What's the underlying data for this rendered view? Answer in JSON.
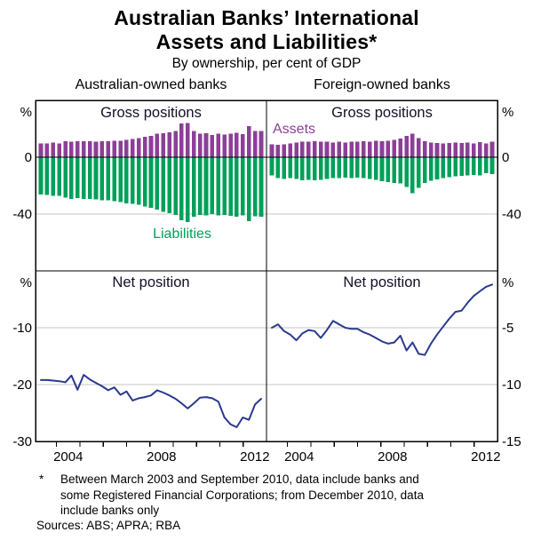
{
  "header": {
    "title_line1": "Australian Banks’ International",
    "title_line2": "Assets and Liabilities*",
    "subtitle": "By ownership, per cent of GDP",
    "col_left": "Australian-owned banks",
    "col_right": "Foreign-owned banks"
  },
  "labels": {
    "gross_left": "Gross positions",
    "gross_right": "Gross positions",
    "net_left": "Net position",
    "net_right": "Net position",
    "assets": "Assets",
    "liabilities": "Liabilities"
  },
  "colors": {
    "assets": "#8C3F97",
    "liabilities": "#00A05A",
    "net_line": "#2B3990",
    "grid": "#c4c4c4",
    "axis": "#000000"
  },
  "footnote": {
    "marker": "*",
    "text": "Between March 2003 and September 2010, data include banks and\nsome Registered Financial Corporations; from December 2010, data\ninclude banks only",
    "sources": "Sources: ABS; APRA; RBA"
  },
  "chart_data": [
    {
      "id": "tl",
      "type": "bar",
      "group": "Australian-owned banks",
      "title": "Gross positions",
      "x_quarters": {
        "start": "2003Q1",
        "end": "2012Q1",
        "step": "quarter"
      },
      "xlim": [
        2003.1,
        2013.0
      ],
      "ylim": [
        -80,
        40
      ],
      "ylabel": "%",
      "axis_side": "left",
      "yticks": [
        {
          "v": 0,
          "label": "0"
        },
        {
          "v": -40,
          "label": "-40"
        }
      ],
      "series": [
        {
          "name": "Assets",
          "color": "#8C3F97",
          "values": [
            9.8,
            9.8,
            10.2,
            9.8,
            11.2,
            10.8,
            11.2,
            11.2,
            11.2,
            10.8,
            11.2,
            11.2,
            11.7,
            11.7,
            12.3,
            12.7,
            13.3,
            14.4,
            15.0,
            16.5,
            17.0,
            17.5,
            18.5,
            23.8,
            24.2,
            18.5,
            16.5,
            17.0,
            15.5,
            16.5,
            16.0,
            16.7,
            17.3,
            16.3,
            21.9,
            18.3,
            18.5
          ]
        },
        {
          "name": "Liabilities",
          "color": "#00A05A",
          "values": [
            -26.3,
            -26.7,
            -27.3,
            -27.3,
            -28.3,
            -29.4,
            -28.8,
            -29.4,
            -29.4,
            -29.8,
            -30.4,
            -30.4,
            -30.8,
            -31.5,
            -32.5,
            -32.9,
            -33.5,
            -34.6,
            -35.6,
            -37.0,
            -38.5,
            -39.5,
            -40.5,
            -44.5,
            -45.5,
            -42.0,
            -40.5,
            -41.0,
            -40.0,
            -41.0,
            -40.5,
            -41.3,
            -42.0,
            -41.0,
            -45.0,
            -41.5,
            -42.0
          ]
        }
      ]
    },
    {
      "id": "tr",
      "type": "bar",
      "group": "Foreign-owned banks",
      "title": "Gross positions",
      "x_quarters": {
        "start": "2003Q1",
        "end": "2012Q1",
        "step": "quarter"
      },
      "xlim": [
        2003.1,
        2013.0
      ],
      "ylim": [
        -80,
        40
      ],
      "ylabel": "%",
      "axis_side": "right",
      "yticks": [
        {
          "v": 0,
          "label": "0"
        },
        {
          "v": -40,
          "label": "-40"
        }
      ],
      "series": [
        {
          "name": "Assets",
          "color": "#8C3F97",
          "values": [
            9.2,
            8.8,
            9.2,
            9.6,
            10.2,
            10.8,
            10.8,
            11.2,
            10.8,
            10.8,
            10.2,
            10.8,
            10.2,
            10.8,
            10.8,
            11.2,
            10.8,
            11.7,
            11.2,
            11.5,
            12.3,
            13.0,
            15.0,
            16.5,
            13.3,
            11.2,
            10.4,
            10.0,
            9.8,
            10.0,
            10.2,
            10.0,
            10.4,
            9.6,
            10.6,
            9.8,
            10.8
          ]
        },
        {
          "name": "Liabilities",
          "color": "#00A05A",
          "values": [
            -12.7,
            -14.8,
            -15.4,
            -14.8,
            -15.4,
            -16.3,
            -15.8,
            -16.3,
            -15.8,
            -15.4,
            -14.8,
            -14.8,
            -14.4,
            -14.8,
            -14.4,
            -14.8,
            -15.4,
            -15.8,
            -16.9,
            -17.5,
            -18.0,
            -18.5,
            -21.0,
            -25.2,
            -21.5,
            -18.0,
            -16.5,
            -15.5,
            -14.8,
            -14.0,
            -13.5,
            -13.2,
            -12.8,
            -12.4,
            -12.8,
            -11.4,
            -11.8
          ]
        }
      ]
    },
    {
      "id": "bl",
      "type": "line",
      "group": "Australian-owned banks",
      "title": "Net position",
      "x_quarters": {
        "start": "2003Q1",
        "end": "2012Q1",
        "step": "quarter"
      },
      "xlim": [
        2003.1,
        2013.0
      ],
      "ylim": [
        -30,
        0
      ],
      "ylabel": "%",
      "axis_side": "left",
      "yticks": [
        {
          "v": -10,
          "label": "-10"
        },
        {
          "v": -20,
          "label": "-20"
        },
        {
          "v": -30,
          "label": "-30"
        }
      ],
      "xticks_years": [
        2004,
        2005,
        2006,
        2007,
        2008,
        2009,
        2010,
        2011,
        2012
      ],
      "xtick_labeled_years": [
        2004,
        2008,
        2012
      ],
      "series": [
        {
          "name": "Net position",
          "color": "#2B3990",
          "values": [
            -19.2,
            -19.2,
            -19.3,
            -19.4,
            -19.6,
            -18.4,
            -20.9,
            -18.3,
            -19.1,
            -19.7,
            -20.3,
            -21.0,
            -20.5,
            -21.8,
            -21.2,
            -22.8,
            -22.4,
            -22.2,
            -21.9,
            -21.0,
            -21.4,
            -21.9,
            -22.5,
            -23.3,
            -24.2,
            -23.3,
            -22.3,
            -22.2,
            -22.4,
            -23.0,
            -25.8,
            -27.0,
            -27.5,
            -25.8,
            -26.2,
            -23.5,
            -22.5
          ]
        }
      ]
    },
    {
      "id": "br",
      "type": "line",
      "group": "Foreign-owned banks",
      "title": "Net position",
      "x_quarters": {
        "start": "2003Q1",
        "end": "2012Q1",
        "step": "quarter"
      },
      "xlim": [
        2003.1,
        2013.0
      ],
      "ylim": [
        -15,
        0
      ],
      "ylabel": "%",
      "axis_side": "right",
      "yticks": [
        {
          "v": -5,
          "label": "-5"
        },
        {
          "v": -10,
          "label": "-10"
        },
        {
          "v": -15,
          "label": "-15"
        }
      ],
      "xticks_years": [
        2004,
        2005,
        2006,
        2007,
        2008,
        2009,
        2010,
        2011,
        2012
      ],
      "xtick_labeled_years": [
        2004,
        2008,
        2012
      ],
      "series": [
        {
          "name": "Net position",
          "color": "#2B3990",
          "values": [
            -5.0,
            -4.7,
            -5.3,
            -5.6,
            -6.1,
            -5.5,
            -5.2,
            -5.3,
            -5.9,
            -5.2,
            -4.4,
            -4.7,
            -5.0,
            -5.1,
            -5.1,
            -5.4,
            -5.6,
            -5.9,
            -6.2,
            -6.4,
            -6.3,
            -5.7,
            -7.0,
            -6.3,
            -7.3,
            -7.4,
            -6.4,
            -5.6,
            -4.9,
            -4.2,
            -3.6,
            -3.5,
            -2.8,
            -2.2,
            -1.8,
            -1.4,
            -1.2
          ]
        }
      ]
    }
  ]
}
